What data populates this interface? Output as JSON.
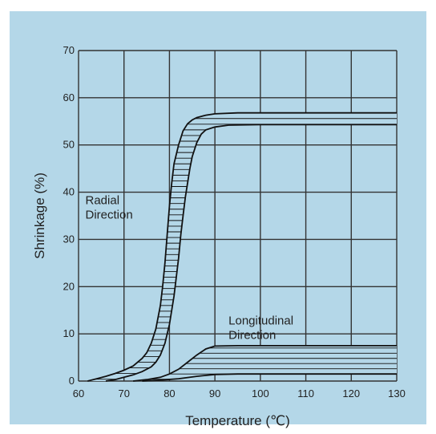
{
  "chart_data": {
    "type": "area",
    "title": "",
    "xlabel": "Temperature (℃)",
    "ylabel": "Shrinkage (%)",
    "xlim": [
      60,
      130
    ],
    "ylim": [
      0,
      70
    ],
    "x_ticks": [
      60,
      70,
      80,
      90,
      100,
      110,
      120,
      130
    ],
    "y_ticks": [
      0,
      10,
      20,
      30,
      40,
      50,
      60,
      70
    ],
    "grid": true,
    "legend": "none",
    "colors": {
      "background": "#b4d7e8",
      "plot_area": "#b4d7e8",
      "line": "#111111",
      "band_fill": "#b4d7e8"
    },
    "annotations": [
      {
        "lines": [
          "Radial",
          "Direction"
        ],
        "x": 61.5,
        "y": 37.5
      },
      {
        "lines": [
          "Longitudinal",
          "Direction"
        ],
        "x": 93,
        "y": 12
      }
    ],
    "series": [
      {
        "name": "Radial Direction",
        "x_upper": [
          62,
          64,
          66,
          68,
          70,
          72,
          74,
          75,
          76,
          77,
          78,
          78.5,
          79,
          79.5,
          80,
          80.5,
          81,
          82,
          83,
          84,
          85,
          86,
          88,
          90,
          95,
          100,
          110,
          120,
          130
        ],
        "upper": [
          0,
          0.5,
          1,
          1.6,
          2.3,
          3.2,
          4.8,
          6,
          8,
          11,
          16,
          20,
          25,
          31,
          37,
          42,
          46,
          50,
          53,
          54.5,
          55.3,
          55.8,
          56.3,
          56.6,
          56.8,
          56.8,
          56.8,
          56.8,
          56.8
        ],
        "x_lower": [
          66,
          68,
          70,
          72,
          74,
          76,
          77,
          78,
          79,
          80,
          81,
          82,
          82.5,
          83,
          83.5,
          84,
          84.5,
          85,
          86,
          87,
          88,
          90,
          93,
          100,
          110,
          120,
          130
        ],
        "lower": [
          0,
          0.3,
          0.8,
          1.3,
          2,
          3,
          4,
          5.5,
          8,
          12,
          18,
          26,
          31,
          35,
          39,
          42,
          45,
          47.5,
          50.5,
          52.3,
          53.2,
          53.8,
          54.2,
          54.3,
          54.3,
          54.3,
          54.3
        ]
      },
      {
        "name": "Longitudinal Direction",
        "x_upper": [
          72,
          75,
          78,
          80,
          82,
          84,
          86,
          88,
          90,
          95,
          100,
          110,
          120,
          130
        ],
        "upper": [
          0,
          0.3,
          0.8,
          1.5,
          2.5,
          4,
          5.5,
          6.8,
          7.4,
          7.5,
          7.5,
          7.5,
          7.5,
          7.5
        ],
        "x_lower": [
          74,
          78,
          82,
          86,
          90,
          95,
          100,
          110,
          120,
          130
        ],
        "lower": [
          0,
          0.2,
          0.5,
          1,
          1.4,
          1.5,
          1.5,
          1.5,
          1.5,
          1.5
        ]
      }
    ]
  }
}
